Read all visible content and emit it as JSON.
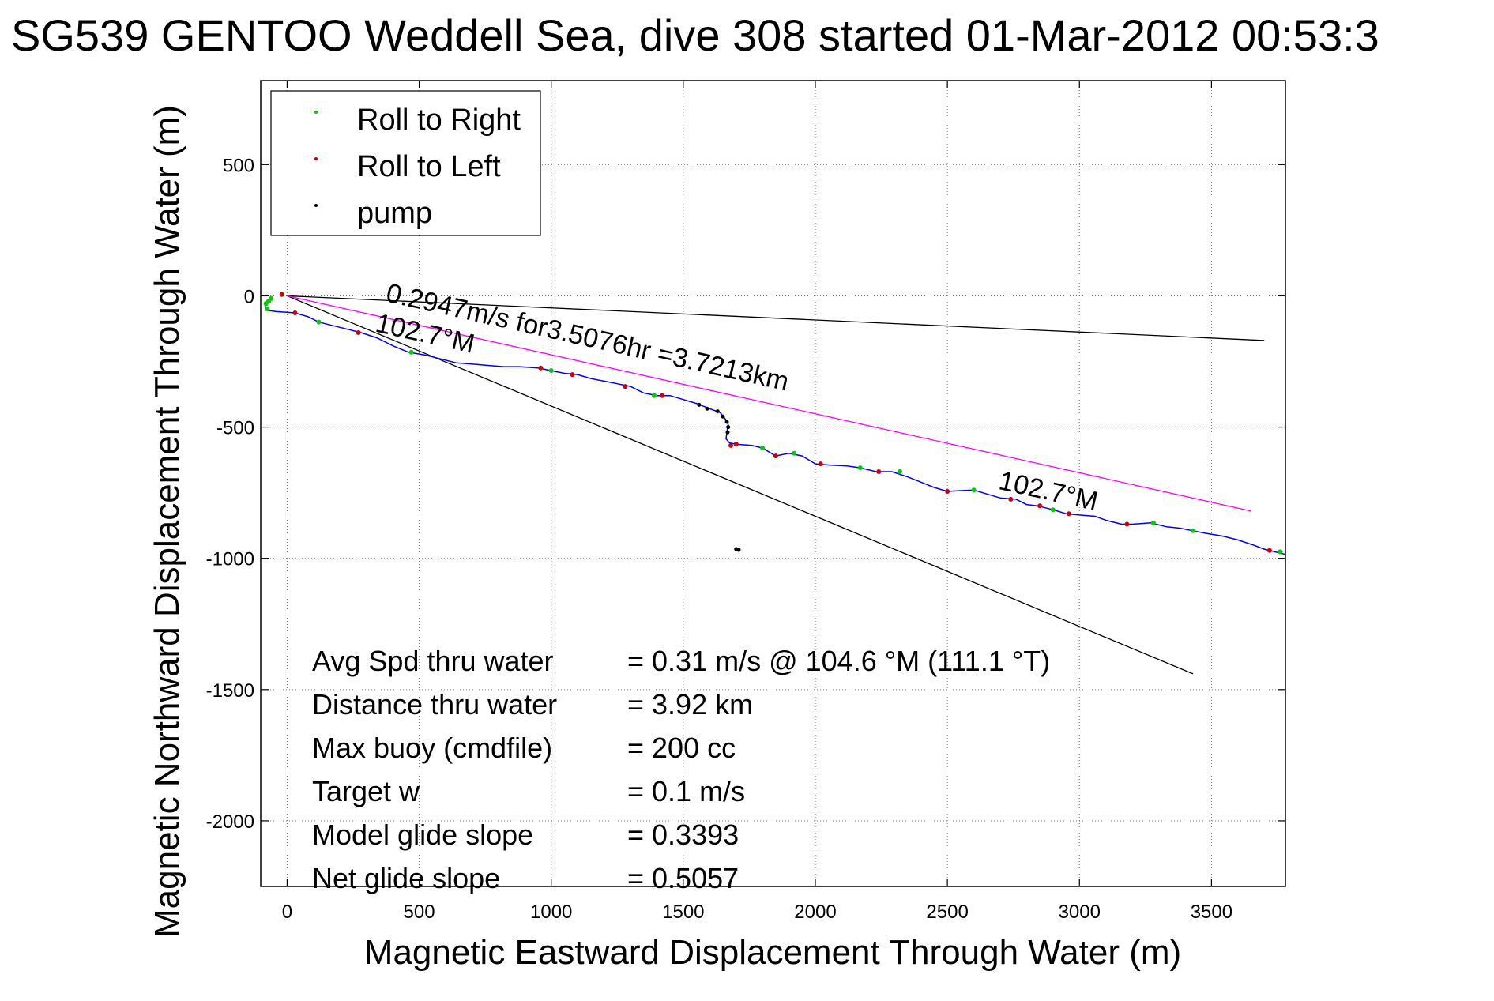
{
  "chart_data": {
    "type": "line",
    "title": "SG539 GENTOO Weddell Sea, dive 308 started 01-Mar-2012 00:53:3",
    "xlabel": "Magnetic Eastward Displacement Through Water (m)",
    "ylabel": "Magnetic Northward Displacement Through Water (m)",
    "xlim": [
      -100,
      3780
    ],
    "ylim": [
      -2250,
      820
    ],
    "x_ticks": [
      0,
      500,
      1000,
      1500,
      2000,
      2500,
      3000,
      3500
    ],
    "y_ticks": [
      500,
      0,
      -500,
      -1000,
      -1500,
      -2000
    ],
    "grid": true,
    "legend_position": "top-left",
    "legend": [
      {
        "label": "Roll to Right",
        "color": "#00cc00"
      },
      {
        "label": "Roll to Left",
        "color": "#cc0000"
      },
      {
        "label": "pump",
        "color": "#000000"
      }
    ],
    "track": {
      "color": "#0000ff",
      "points": [
        [
          -85,
          -30
        ],
        [
          -80,
          -55
        ],
        [
          -40,
          -60
        ],
        [
          30,
          -65
        ],
        [
          80,
          -80
        ],
        [
          120,
          -100
        ],
        [
          200,
          -120
        ],
        [
          280,
          -140
        ],
        [
          340,
          -160
        ],
        [
          400,
          -190
        ],
        [
          460,
          -215
        ],
        [
          520,
          -225
        ],
        [
          580,
          -240
        ],
        [
          640,
          -255
        ],
        [
          700,
          -260
        ],
        [
          760,
          -265
        ],
        [
          820,
          -270
        ],
        [
          880,
          -270
        ],
        [
          950,
          -275
        ],
        [
          1000,
          -285
        ],
        [
          1050,
          -295
        ],
        [
          1100,
          -300
        ],
        [
          1150,
          -315
        ],
        [
          1200,
          -325
        ],
        [
          1250,
          -335
        ],
        [
          1300,
          -345
        ],
        [
          1350,
          -370
        ],
        [
          1400,
          -380
        ],
        [
          1450,
          -380
        ],
        [
          1500,
          -395
        ],
        [
          1550,
          -410
        ],
        [
          1600,
          -430
        ],
        [
          1640,
          -445
        ],
        [
          1660,
          -470
        ],
        [
          1670,
          -490
        ],
        [
          1665,
          -520
        ],
        [
          1662,
          -545
        ],
        [
          1675,
          -560
        ],
        [
          1700,
          -565
        ],
        [
          1760,
          -570
        ],
        [
          1800,
          -580
        ],
        [
          1850,
          -610
        ],
        [
          1900,
          -600
        ],
        [
          1950,
          -610
        ],
        [
          2000,
          -640
        ],
        [
          2060,
          -645
        ],
        [
          2120,
          -648
        ],
        [
          2170,
          -655
        ],
        [
          2230,
          -670
        ],
        [
          2290,
          -670
        ],
        [
          2350,
          -690
        ],
        [
          2400,
          -710
        ],
        [
          2450,
          -730
        ],
        [
          2500,
          -745
        ],
        [
          2550,
          -742
        ],
        [
          2600,
          -740
        ],
        [
          2650,
          -755
        ],
        [
          2700,
          -770
        ],
        [
          2760,
          -775
        ],
        [
          2800,
          -795
        ],
        [
          2840,
          -800
        ],
        [
          2900,
          -815
        ],
        [
          2950,
          -830
        ],
        [
          3000,
          -835
        ],
        [
          3060,
          -840
        ],
        [
          3100,
          -855
        ],
        [
          3160,
          -870
        ],
        [
          3200,
          -870
        ],
        [
          3270,
          -865
        ],
        [
          3330,
          -880
        ],
        [
          3380,
          -885
        ],
        [
          3430,
          -895
        ],
        [
          3480,
          -905
        ],
        [
          3540,
          -915
        ],
        [
          3600,
          -930
        ],
        [
          3660,
          -950
        ],
        [
          3700,
          -965
        ],
        [
          3740,
          -975
        ],
        [
          3780,
          -985
        ]
      ]
    },
    "roll_right_points": [
      [
        -80,
        -30
      ],
      [
        -75,
        -50
      ],
      [
        -70,
        -20
      ],
      [
        -60,
        -10
      ],
      [
        120,
        -100
      ],
      [
        470,
        -215
      ],
      [
        1000,
        -285
      ],
      [
        1390,
        -380
      ],
      [
        1800,
        -580
      ],
      [
        1920,
        -600
      ],
      [
        2170,
        -655
      ],
      [
        2320,
        -670
      ],
      [
        2600,
        -740
      ],
      [
        2900,
        -815
      ],
      [
        3280,
        -865
      ],
      [
        3430,
        -895
      ],
      [
        3760,
        -975
      ]
    ],
    "roll_left_points": [
      [
        -20,
        5
      ],
      [
        30,
        -65
      ],
      [
        270,
        -140
      ],
      [
        960,
        -275
      ],
      [
        1080,
        -300
      ],
      [
        1280,
        -345
      ],
      [
        1420,
        -380
      ],
      [
        1680,
        -570
      ],
      [
        1700,
        -565
      ],
      [
        1850,
        -610
      ],
      [
        2020,
        -640
      ],
      [
        2240,
        -670
      ],
      [
        2500,
        -745
      ],
      [
        2740,
        -775
      ],
      [
        2850,
        -800
      ],
      [
        2960,
        -830
      ],
      [
        3180,
        -870
      ],
      [
        3720,
        -970
      ]
    ],
    "pump_points": [
      [
        1560,
        -415
      ],
      [
        1590,
        -430
      ],
      [
        1630,
        -440
      ],
      [
        1650,
        -460
      ],
      [
        1665,
        -480
      ],
      [
        1670,
        -500
      ],
      [
        1668,
        -520
      ],
      [
        1700,
        -965
      ],
      [
        1710,
        -968
      ]
    ],
    "reference_lines": [
      {
        "name": "black-upper",
        "color": "#000000",
        "from": [
          0,
          0
        ],
        "to": [
          3700,
          -170
        ]
      },
      {
        "name": "black-lower",
        "color": "#000000",
        "from": [
          0,
          0
        ],
        "to": [
          3430,
          -1440
        ]
      },
      {
        "name": "magenta-fit",
        "color": "#ff00ff",
        "from": [
          0,
          0
        ],
        "to": [
          3650,
          -820
        ]
      }
    ],
    "annotations": [
      {
        "text": "0.2947m/s for3.5076hr =3.7213km",
        "x": 370,
        "y": -20,
        "rotate": 12.6
      },
      {
        "text": "102.7°M",
        "x": 330,
        "y": -135,
        "rotate": 12.6
      },
      {
        "text": "102.7°M",
        "x": 2690,
        "y": -735,
        "rotate": 12.6
      }
    ],
    "stats": [
      {
        "label": "Avg Spd thru water",
        "value": "=  0.31 m/s @ 104.6 °M (111.1 °T)"
      },
      {
        "label": "Distance thru water",
        "value": "=  3.92 km"
      },
      {
        "label": "Max buoy (cmdfile)",
        "value": "= 200 cc"
      },
      {
        "label": "Target w",
        "value": "= 0.1 m/s"
      },
      {
        "label": "Model glide slope",
        "value": "= 0.3393"
      },
      {
        "label": "Net glide slope",
        "value": "= 0.5057"
      }
    ]
  }
}
